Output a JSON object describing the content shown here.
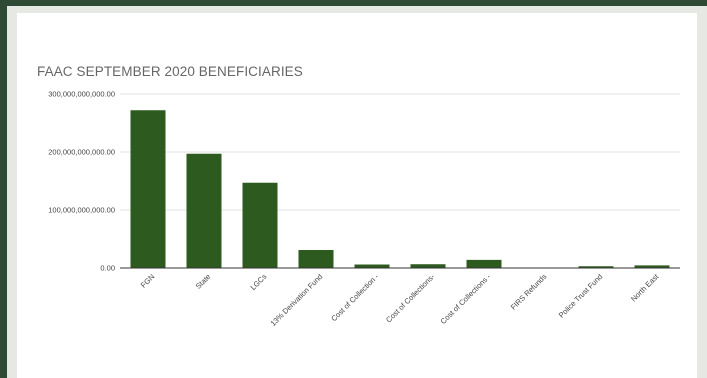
{
  "chart_data": {
    "type": "bar",
    "title": "FAAC SEPTEMBER 2020 BENEFICIARIES",
    "xlabel": "",
    "ylabel": "",
    "ylim": [
      0,
      300000000000
    ],
    "yticks": [
      "0.00",
      "100,000,000,000.00",
      "200,000,000,000.00",
      "300,000,000,000.00"
    ],
    "grid": true,
    "legend": "none",
    "bar_color": "#2d5a1e",
    "categories": [
      "FGN",
      "State",
      "LGCs",
      "13% Derivation Fund",
      "Cost of Collection -",
      "Cost of Collections-",
      "Cost of Collections -",
      "FIRS Refunds",
      "Police Trust Fund",
      "North East"
    ],
    "values": [
      272000000000,
      197000000000,
      147000000000,
      31000000000,
      6000000000,
      6500000000,
      14000000000,
      0,
      3000000000,
      4500000000
    ]
  },
  "colors": {
    "frame": "#2f4a34",
    "panel": "#e6e8e4",
    "card": "#ffffff"
  }
}
